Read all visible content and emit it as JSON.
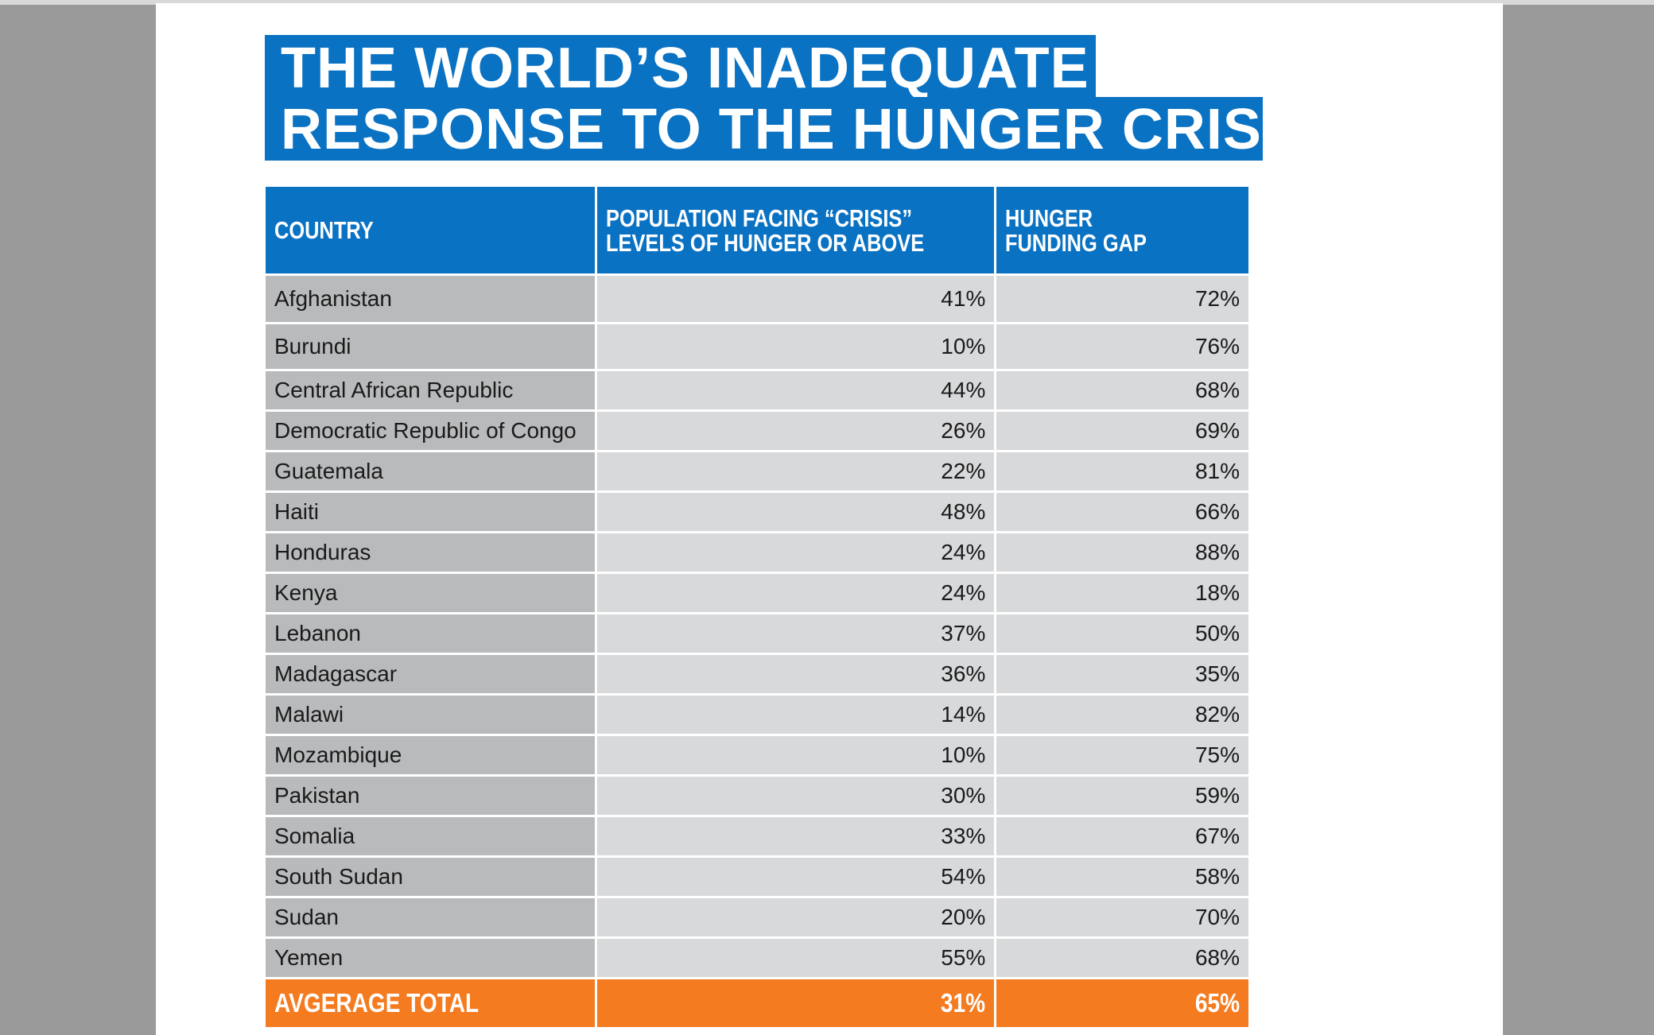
{
  "title": {
    "line1": "THE WORLD’S INADEQUATE",
    "line2": "RESPONSE TO THE HUNGER CRISIS"
  },
  "colors": {
    "header_blue": "#0a72c3",
    "total_orange": "#f47b20",
    "country_cell": "#b9babc",
    "value_cell": "#d8d9db"
  },
  "table": {
    "headers": {
      "country": "COUNTRY",
      "population_line1": "POPULATION FACING “CRISIS”",
      "population_line2": "LEVELS OF HUNGER OR ABOVE",
      "gap_line1": "HUNGER",
      "gap_line2": "FUNDING GAP"
    },
    "rows": [
      {
        "country": "Afghanistan",
        "population": "41%",
        "gap": "72%"
      },
      {
        "country": "Burundi",
        "population": "10%",
        "gap": "76%"
      },
      {
        "country": "Central African Republic",
        "population": "44%",
        "gap": "68%"
      },
      {
        "country": "Democratic Republic of Congo",
        "population": "26%",
        "gap": "69%"
      },
      {
        "country": "Guatemala",
        "population": "22%",
        "gap": "81%"
      },
      {
        "country": "Haiti",
        "population": "48%",
        "gap": "66%"
      },
      {
        "country": "Honduras",
        "population": "24%",
        "gap": "88%"
      },
      {
        "country": "Kenya",
        "population": "24%",
        "gap": "18%"
      },
      {
        "country": "Lebanon",
        "population": "37%",
        "gap": "50%"
      },
      {
        "country": "Madagascar",
        "population": "36%",
        "gap": "35%"
      },
      {
        "country": "Malawi",
        "population": "14%",
        "gap": "82%"
      },
      {
        "country": "Mozambique",
        "population": "10%",
        "gap": "75%"
      },
      {
        "country": "Pakistan",
        "population": "30%",
        "gap": "59%"
      },
      {
        "country": "Somalia",
        "population": "33%",
        "gap": "67%"
      },
      {
        "country": "South Sudan",
        "population": "54%",
        "gap": "58%"
      },
      {
        "country": "Sudan",
        "population": "20%",
        "gap": "70%"
      },
      {
        "country": "Yemen",
        "population": "55%",
        "gap": "68%"
      }
    ],
    "total": {
      "label": "AVGERAGE TOTAL",
      "population": "31%",
      "gap": "65%"
    }
  }
}
